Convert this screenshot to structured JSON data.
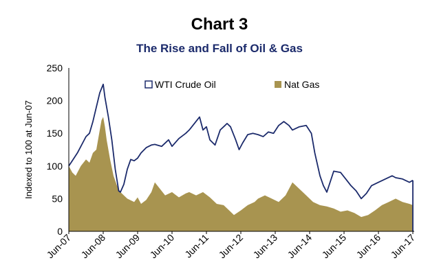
{
  "chart_data": {
    "type": "area",
    "title": "Chart 3",
    "subtitle": "The Rise and Fall of Oil & Gas",
    "xlabel": "",
    "ylabel": "Indexed to 100 at Jun-07",
    "ylim": [
      0,
      250
    ],
    "yticks": [
      "0",
      "50",
      "100",
      "150",
      "200",
      "250"
    ],
    "xticks": [
      "Jun-07",
      "Jun-08",
      "Jun-09",
      "Jun-10",
      "Jun-11",
      "Jun-12",
      "Jun-13",
      "Jun-14",
      "Jun-15",
      "Jun-16",
      "Jun-17"
    ],
    "grid": false,
    "legend": "top",
    "series": [
      {
        "name": "WTI Crude Oil",
        "kind": "line",
        "color": "#1b2a6b",
        "x": [
          2007.5,
          2007.6,
          2007.75,
          2007.9,
          2008.0,
          2008.1,
          2008.2,
          2008.3,
          2008.4,
          2008.5,
          2008.55,
          2008.65,
          2008.75,
          2008.85,
          2008.95,
          2009.0,
          2009.1,
          2009.2,
          2009.3,
          2009.4,
          2009.5,
          2009.6,
          2009.75,
          2009.9,
          2010.0,
          2010.2,
          2010.4,
          2010.5,
          2010.7,
          2010.9,
          2011.0,
          2011.15,
          2011.3,
          2011.4,
          2011.5,
          2011.6,
          2011.75,
          2011.9,
          2012.0,
          2012.1,
          2012.2,
          2012.35,
          2012.45,
          2012.55,
          2012.7,
          2012.85,
          2013.0,
          2013.15,
          2013.3,
          2013.45,
          2013.6,
          2013.75,
          2013.9,
          2014.0,
          2014.2,
          2014.4,
          2014.55,
          2014.65,
          2014.8,
          2014.9,
          2015.0,
          2015.2,
          2015.4,
          2015.55,
          2015.7,
          2015.85,
          2016.0,
          2016.15,
          2016.3,
          2016.5,
          2016.7,
          2016.9,
          2017.0,
          2017.2,
          2017.4,
          2017.5
        ],
        "values": [
          100,
          108,
          120,
          135,
          145,
          150,
          168,
          190,
          212,
          225,
          205,
          175,
          140,
          95,
          62,
          60,
          72,
          95,
          110,
          108,
          112,
          120,
          128,
          132,
          133,
          130,
          140,
          130,
          142,
          150,
          155,
          165,
          175,
          155,
          160,
          140,
          132,
          155,
          160,
          165,
          160,
          140,
          125,
          135,
          148,
          150,
          148,
          145,
          152,
          150,
          162,
          168,
          162,
          155,
          160,
          162,
          150,
          120,
          85,
          70,
          60,
          92,
          90,
          80,
          70,
          62,
          50,
          58,
          70,
          75,
          80,
          85,
          82,
          80,
          75,
          78
        ]
      },
      {
        "name": "Nat Gas",
        "kind": "area",
        "color": "#a89450",
        "x": [
          2007.5,
          2007.6,
          2007.7,
          2007.85,
          2008.0,
          2008.1,
          2008.2,
          2008.3,
          2008.4,
          2008.45,
          2008.5,
          2008.55,
          2008.6,
          2008.7,
          2008.8,
          2008.9,
          2009.0,
          2009.2,
          2009.4,
          2009.5,
          2009.6,
          2009.75,
          2009.9,
          2010.0,
          2010.15,
          2010.3,
          2010.5,
          2010.7,
          2010.9,
          2011.0,
          2011.2,
          2011.4,
          2011.6,
          2011.8,
          2012.0,
          2012.2,
          2012.3,
          2012.5,
          2012.7,
          2012.9,
          2013.0,
          2013.2,
          2013.4,
          2013.6,
          2013.8,
          2013.9,
          2014.0,
          2014.2,
          2014.4,
          2014.6,
          2014.8,
          2015.0,
          2015.2,
          2015.4,
          2015.6,
          2015.8,
          2016.0,
          2016.2,
          2016.4,
          2016.6,
          2016.8,
          2017.0,
          2017.2,
          2017.4,
          2017.5
        ],
        "values": [
          100,
          90,
          85,
          100,
          110,
          105,
          120,
          125,
          155,
          170,
          175,
          160,
          140,
          110,
          85,
          70,
          60,
          50,
          45,
          52,
          42,
          48,
          60,
          75,
          65,
          55,
          60,
          52,
          58,
          60,
          55,
          60,
          52,
          42,
          40,
          30,
          25,
          32,
          40,
          45,
          50,
          55,
          50,
          45,
          55,
          65,
          75,
          65,
          55,
          45,
          40,
          38,
          35,
          30,
          32,
          28,
          22,
          25,
          32,
          40,
          45,
          50,
          45,
          42,
          40
        ]
      }
    ]
  }
}
